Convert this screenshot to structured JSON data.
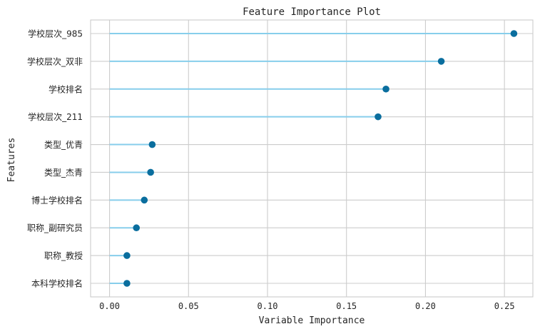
{
  "chart_data": {
    "type": "lollipop",
    "title": "Feature Importance Plot",
    "xlabel": "Variable Importance",
    "ylabel": "Features",
    "xlim": [
      -0.012,
      0.268
    ],
    "xticks": [
      0.0,
      0.05,
      0.1,
      0.15,
      0.2,
      0.25
    ],
    "xtick_labels": [
      "0.00",
      "0.05",
      "0.10",
      "0.15",
      "0.20",
      "0.25"
    ],
    "grid": true,
    "categories": [
      "学校层次_985",
      "学校层次_双非",
      "学校排名",
      "学校层次_211",
      "类型_优青",
      "类型_杰青",
      "博士学校排名",
      "职称_副研究员",
      "职称_教授",
      "本科学校排名"
    ],
    "values": [
      0.256,
      0.21,
      0.175,
      0.17,
      0.027,
      0.026,
      0.022,
      0.017,
      0.011,
      0.011
    ],
    "colors": {
      "stem": "#87CEEB",
      "marker": "#0A6E9E",
      "grid": "#CCCCCC",
      "axes_edge": "#CCCCCC"
    }
  }
}
